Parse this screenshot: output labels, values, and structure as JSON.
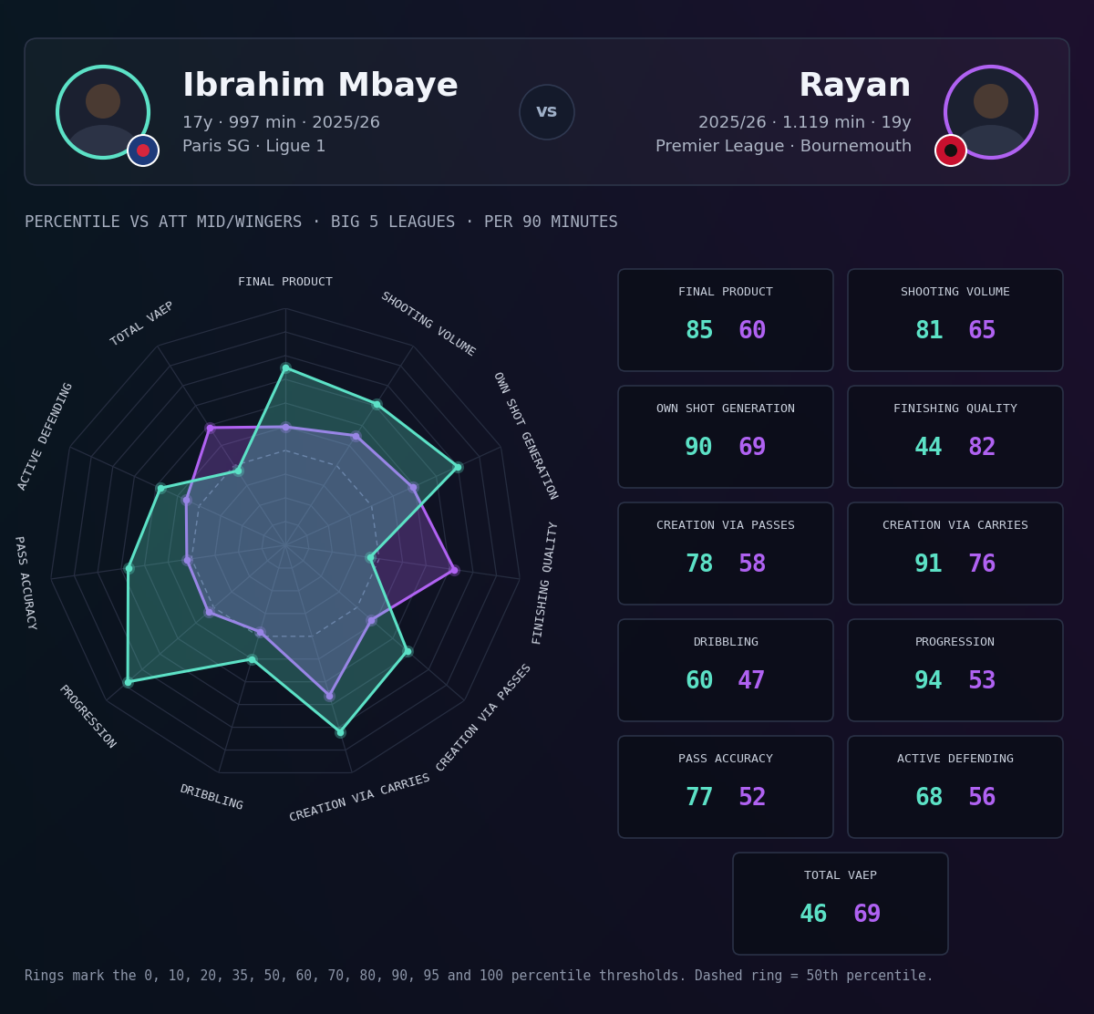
{
  "header": {
    "left": {
      "details": "17y · 997 min · 2025/26",
      "team": "Paris SG · Ligue 1"
    },
    "separator": "vs",
    "right": {
      "details": "2025/26 · 1.119 min · 19y",
      "team": "Premier League · Bournemouth"
    }
  },
  "subtitle": "PERCENTILE VS ATT MID/WINGERS · BIG 5 LEAGUES · PER 90 MINUTES",
  "chart_data": {
    "type": "radar",
    "categories": [
      "FINAL PRODUCT",
      "SHOOTING VOLUME",
      "OWN SHOT GENERATION",
      "FINISHING QUALITY",
      "CREATION VIA PASSES",
      "CREATION VIA CARRIES",
      "DRIBBLING",
      "PROGRESSION",
      "PASS ACCURACY",
      "ACTIVE DEFENDING",
      "TOTAL VAEP"
    ],
    "series": [
      {
        "name": "Ibrahim Mbaye",
        "color": "#5ce1c6",
        "values": [
          85,
          81,
          90,
          44,
          78,
          91,
          60,
          94,
          77,
          68,
          46
        ]
      },
      {
        "name": "Rayan",
        "color": "#b062f2",
        "values": [
          60,
          65,
          69,
          82,
          58,
          76,
          47,
          53,
          52,
          56,
          69
        ]
      }
    ],
    "ylim": [
      0,
      100
    ],
    "yticks": [
      0,
      10,
      20,
      35,
      50,
      60,
      70,
      80,
      90,
      95,
      100
    ],
    "tick_labels": false
  },
  "footer": "Rings mark the 0, 10, 20, 35, 50, 60, 70, 80, 90, 95 and 100 percentile thresholds. Dashed ring = 50th percentile."
}
